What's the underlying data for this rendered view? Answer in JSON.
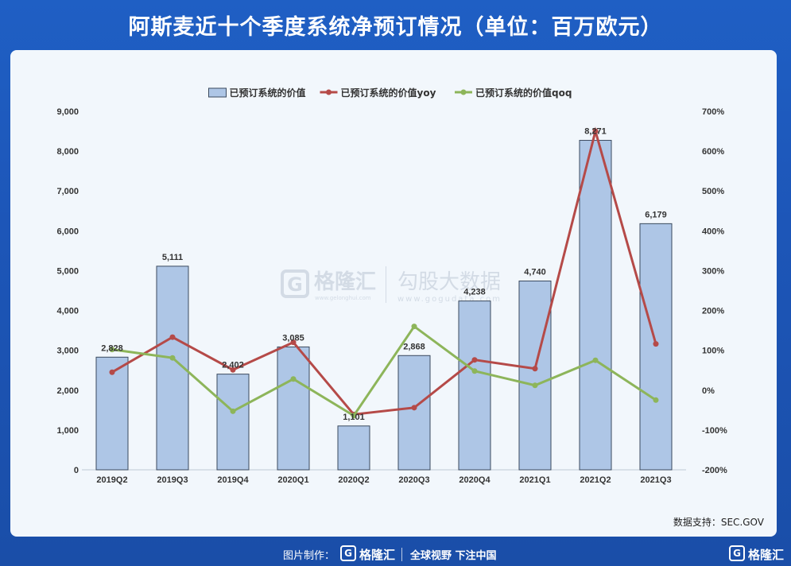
{
  "title": "阿斯麦近十个季度系统净预订情况（单位：百万欧元）",
  "source": "数据支持：SEC.GOV",
  "watermark": {
    "brand": "格隆汇",
    "brand_url": "www.gelonghui.com",
    "partner": "勾股大数据",
    "partner_url": "www.gogudata.com"
  },
  "footer": {
    "credit": "图片制作：",
    "brand": "格隆汇",
    "slogan": "全球视野 下注中国",
    "corner_brand": "格隆汇",
    "logo_letter": "G"
  },
  "chart_data": {
    "type": "bar",
    "categories": [
      "2019Q2",
      "2019Q3",
      "2019Q4",
      "2020Q1",
      "2020Q2",
      "2020Q3",
      "2020Q4",
      "2021Q1",
      "2021Q2",
      "2021Q3"
    ],
    "series": [
      {
        "name": "已预订系统的价值",
        "type": "bar",
        "axis": "left",
        "color": "#aec6e6",
        "values": [
          2828,
          5111,
          2402,
          3085,
          1101,
          2868,
          4238,
          4740,
          8271,
          6179
        ],
        "labels": [
          "2,828",
          "5,111",
          "2,402",
          "3,085",
          "1,101",
          "2,868",
          "4,238",
          "4,740",
          "8,271",
          "6,179"
        ]
      },
      {
        "name": "已预订系统的价值yoy",
        "type": "line",
        "axis": "right",
        "color": "#b54a48",
        "values": [
          45,
          133,
          51,
          120,
          -61,
          -44,
          76,
          54,
          650,
          116
        ]
      },
      {
        "name": "已预订系统的价值qoq",
        "type": "line",
        "axis": "right",
        "color": "#8db55a",
        "values": [
          102,
          81,
          -53,
          28,
          -64,
          160,
          48,
          12,
          75,
          -25
        ]
      }
    ],
    "y_left": {
      "min": 0,
      "max": 9000,
      "step": 1000,
      "ticks": [
        "0",
        "1,000",
        "2,000",
        "3,000",
        "4,000",
        "5,000",
        "6,000",
        "7,000",
        "8,000",
        "9,000"
      ]
    },
    "y_right": {
      "min": -200,
      "max": 700,
      "step": 100,
      "ticks": [
        "-200%",
        "-100%",
        "0%",
        "100%",
        "200%",
        "300%",
        "400%",
        "500%",
        "600%",
        "700%"
      ]
    },
    "legend_position": "top",
    "grid": false
  }
}
